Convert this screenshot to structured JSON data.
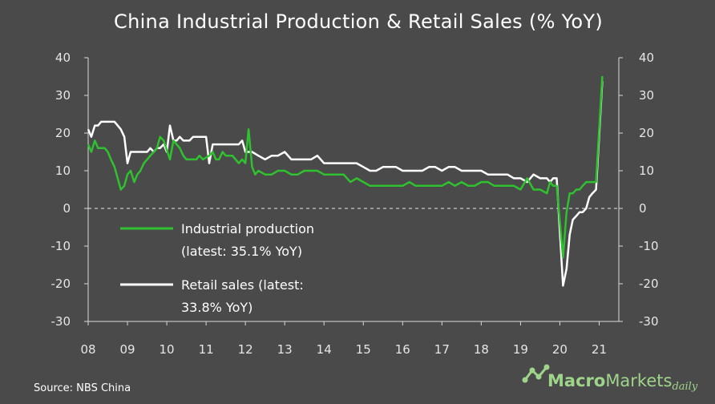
{
  "chart_data": {
    "type": "line",
    "title": "China Industrial  Production  & Retail  Sales (% YoY)",
    "x_ticks": [
      "08",
      "09",
      "10",
      "11",
      "12",
      "13",
      "14",
      "15",
      "16",
      "17",
      "18",
      "19",
      "20",
      "21"
    ],
    "x_tick_values": [
      2008,
      2009,
      2010,
      2011,
      2012,
      2013,
      2014,
      2015,
      2016,
      2017,
      2018,
      2019,
      2020,
      2021
    ],
    "xlim": [
      2008,
      2021.5
    ],
    "ylim": [
      -30,
      40
    ],
    "y_ticks": [
      40,
      30,
      20,
      10,
      0,
      -10,
      -20,
      -30
    ],
    "y_ticks_right": [
      40,
      30,
      20,
      10,
      0,
      -10,
      -20,
      -30
    ],
    "zero_line": "dashed",
    "grid": false,
    "legend_position": "left",
    "series": [
      {
        "name": "Industrial  production",
        "legend_lines": [
          "Industrial  production",
          "(latest:  35.1%  YoY)"
        ],
        "color": "#2fc12f",
        "points": [
          [
            2008.0,
            17
          ],
          [
            2008.08,
            15
          ],
          [
            2008.17,
            18
          ],
          [
            2008.25,
            16
          ],
          [
            2008.33,
            16
          ],
          [
            2008.42,
            16
          ],
          [
            2008.5,
            15
          ],
          [
            2008.58,
            13
          ],
          [
            2008.67,
            11
          ],
          [
            2008.75,
            8
          ],
          [
            2008.83,
            5
          ],
          [
            2008.92,
            6
          ],
          [
            2009.0,
            9
          ],
          [
            2009.08,
            10
          ],
          [
            2009.17,
            7
          ],
          [
            2009.25,
            9
          ],
          [
            2009.33,
            10
          ],
          [
            2009.42,
            12
          ],
          [
            2009.5,
            13
          ],
          [
            2009.58,
            14
          ],
          [
            2009.67,
            15
          ],
          [
            2009.75,
            16
          ],
          [
            2009.83,
            19
          ],
          [
            2009.92,
            18
          ],
          [
            2010.08,
            13
          ],
          [
            2010.17,
            18
          ],
          [
            2010.25,
            17
          ],
          [
            2010.33,
            16
          ],
          [
            2010.42,
            14
          ],
          [
            2010.5,
            13
          ],
          [
            2010.58,
            13
          ],
          [
            2010.67,
            13
          ],
          [
            2010.75,
            13
          ],
          [
            2010.83,
            14
          ],
          [
            2010.92,
            13
          ],
          [
            2011.08,
            14
          ],
          [
            2011.17,
            15
          ],
          [
            2011.25,
            13
          ],
          [
            2011.33,
            13
          ],
          [
            2011.42,
            15
          ],
          [
            2011.5,
            14
          ],
          [
            2011.58,
            14
          ],
          [
            2011.67,
            14
          ],
          [
            2011.75,
            13
          ],
          [
            2011.83,
            12
          ],
          [
            2011.92,
            13
          ],
          [
            2012.0,
            12
          ],
          [
            2012.08,
            21
          ],
          [
            2012.17,
            11
          ],
          [
            2012.25,
            9
          ],
          [
            2012.33,
            10
          ],
          [
            2012.5,
            9
          ],
          [
            2012.67,
            9
          ],
          [
            2012.83,
            10
          ],
          [
            2013.0,
            10
          ],
          [
            2013.17,
            9
          ],
          [
            2013.33,
            9
          ],
          [
            2013.5,
            10
          ],
          [
            2013.67,
            10
          ],
          [
            2013.83,
            10
          ],
          [
            2014.0,
            9
          ],
          [
            2014.17,
            9
          ],
          [
            2014.33,
            9
          ],
          [
            2014.5,
            9
          ],
          [
            2014.67,
            7
          ],
          [
            2014.83,
            8
          ],
          [
            2015.0,
            7
          ],
          [
            2015.17,
            6
          ],
          [
            2015.33,
            6
          ],
          [
            2015.5,
            6
          ],
          [
            2015.67,
            6
          ],
          [
            2015.83,
            6
          ],
          [
            2016.0,
            6
          ],
          [
            2016.17,
            7
          ],
          [
            2016.33,
            6
          ],
          [
            2016.5,
            6
          ],
          [
            2016.67,
            6
          ],
          [
            2016.83,
            6
          ],
          [
            2017.0,
            6
          ],
          [
            2017.17,
            7
          ],
          [
            2017.33,
            6
          ],
          [
            2017.5,
            7
          ],
          [
            2017.67,
            6
          ],
          [
            2017.83,
            6
          ],
          [
            2018.0,
            7
          ],
          [
            2018.17,
            7
          ],
          [
            2018.33,
            6
          ],
          [
            2018.5,
            6
          ],
          [
            2018.67,
            6
          ],
          [
            2018.83,
            6
          ],
          [
            2019.0,
            5
          ],
          [
            2019.17,
            8
          ],
          [
            2019.33,
            5
          ],
          [
            2019.5,
            5
          ],
          [
            2019.67,
            4
          ],
          [
            2019.75,
            7
          ],
          [
            2019.83,
            6
          ],
          [
            2019.92,
            6
          ],
          [
            2020.08,
            -13
          ],
          [
            2020.17,
            -1
          ],
          [
            2020.25,
            4
          ],
          [
            2020.33,
            4
          ],
          [
            2020.42,
            5
          ],
          [
            2020.5,
            5
          ],
          [
            2020.58,
            6
          ],
          [
            2020.67,
            7
          ],
          [
            2020.75,
            7
          ],
          [
            2020.83,
            7
          ],
          [
            2020.92,
            7
          ],
          [
            2021.08,
            35.1
          ]
        ]
      },
      {
        "name": "Retail  sales",
        "legend_lines": [
          "Retail  sales  (latest:",
          "33.8%  YoY)"
        ],
        "color": "#ffffff",
        "points": [
          [
            2008.0,
            21
          ],
          [
            2008.08,
            19
          ],
          [
            2008.17,
            22
          ],
          [
            2008.25,
            22
          ],
          [
            2008.33,
            23
          ],
          [
            2008.42,
            23
          ],
          [
            2008.5,
            23
          ],
          [
            2008.58,
            23
          ],
          [
            2008.67,
            23
          ],
          [
            2008.75,
            22
          ],
          [
            2008.83,
            21
          ],
          [
            2008.92,
            19
          ],
          [
            2009.0,
            12
          ],
          [
            2009.08,
            15
          ],
          [
            2009.17,
            15
          ],
          [
            2009.25,
            15
          ],
          [
            2009.33,
            15
          ],
          [
            2009.42,
            15
          ],
          [
            2009.5,
            15
          ],
          [
            2009.58,
            16
          ],
          [
            2009.67,
            15
          ],
          [
            2009.75,
            16
          ],
          [
            2009.83,
            16
          ],
          [
            2009.92,
            17
          ],
          [
            2010.0,
            15
          ],
          [
            2010.08,
            22
          ],
          [
            2010.17,
            18
          ],
          [
            2010.25,
            18
          ],
          [
            2010.33,
            19
          ],
          [
            2010.42,
            18
          ],
          [
            2010.5,
            18
          ],
          [
            2010.58,
            18
          ],
          [
            2010.67,
            19
          ],
          [
            2010.75,
            19
          ],
          [
            2010.83,
            19
          ],
          [
            2010.92,
            19
          ],
          [
            2011.0,
            19
          ],
          [
            2011.08,
            12
          ],
          [
            2011.17,
            17
          ],
          [
            2011.25,
            17
          ],
          [
            2011.33,
            17
          ],
          [
            2011.42,
            17
          ],
          [
            2011.5,
            17
          ],
          [
            2011.58,
            17
          ],
          [
            2011.67,
            17
          ],
          [
            2011.75,
            17
          ],
          [
            2011.83,
            17
          ],
          [
            2011.92,
            18
          ],
          [
            2012.0,
            15
          ],
          [
            2012.17,
            15
          ],
          [
            2012.33,
            14
          ],
          [
            2012.5,
            13
          ],
          [
            2012.67,
            14
          ],
          [
            2012.83,
            14
          ],
          [
            2013.0,
            15
          ],
          [
            2013.17,
            13
          ],
          [
            2013.33,
            13
          ],
          [
            2013.5,
            13
          ],
          [
            2013.67,
            13
          ],
          [
            2013.83,
            14
          ],
          [
            2014.0,
            12
          ],
          [
            2014.17,
            12
          ],
          [
            2014.33,
            12
          ],
          [
            2014.5,
            12
          ],
          [
            2014.67,
            12
          ],
          [
            2014.83,
            12
          ],
          [
            2015.0,
            11
          ],
          [
            2015.17,
            10
          ],
          [
            2015.33,
            10
          ],
          [
            2015.5,
            11
          ],
          [
            2015.67,
            11
          ],
          [
            2015.83,
            11
          ],
          [
            2016.0,
            10
          ],
          [
            2016.17,
            10
          ],
          [
            2016.33,
            10
          ],
          [
            2016.5,
            10
          ],
          [
            2016.67,
            11
          ],
          [
            2016.83,
            11
          ],
          [
            2017.0,
            10
          ],
          [
            2017.17,
            11
          ],
          [
            2017.33,
            11
          ],
          [
            2017.5,
            10
          ],
          [
            2017.67,
            10
          ],
          [
            2017.83,
            10
          ],
          [
            2018.0,
            10
          ],
          [
            2018.17,
            9
          ],
          [
            2018.33,
            9
          ],
          [
            2018.5,
            9
          ],
          [
            2018.67,
            9
          ],
          [
            2018.83,
            8
          ],
          [
            2019.0,
            8
          ],
          [
            2019.17,
            7
          ],
          [
            2019.33,
            9
          ],
          [
            2019.5,
            8
          ],
          [
            2019.67,
            8
          ],
          [
            2019.75,
            7
          ],
          [
            2019.83,
            8
          ],
          [
            2019.92,
            8
          ],
          [
            2020.08,
            -20.5
          ],
          [
            2020.17,
            -16
          ],
          [
            2020.25,
            -7
          ],
          [
            2020.33,
            -3
          ],
          [
            2020.42,
            -2
          ],
          [
            2020.5,
            -1
          ],
          [
            2020.58,
            -1
          ],
          [
            2020.67,
            0
          ],
          [
            2020.75,
            3
          ],
          [
            2020.83,
            4
          ],
          [
            2020.92,
            5
          ],
          [
            2021.08,
            33.8
          ]
        ]
      }
    ],
    "source": "Source:  NBS  China",
    "logo": {
      "part1": "Macro",
      "part2": "Markets",
      "part3": "daily"
    }
  }
}
